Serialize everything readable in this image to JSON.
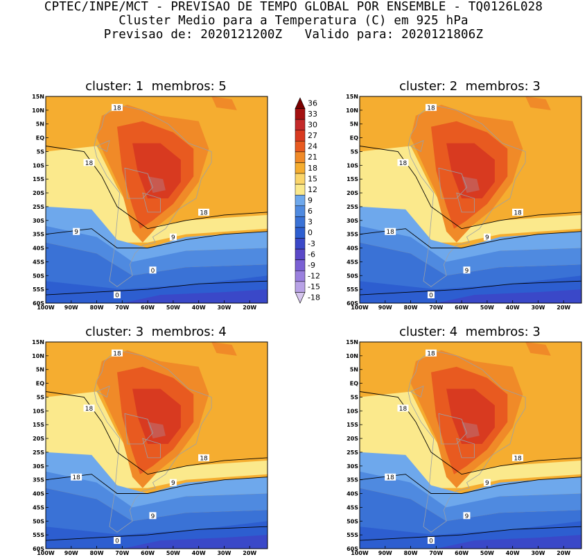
{
  "header": {
    "line1": "CPTEC/INPE/MCT - PREVISAO DE TEMPO GLOBAL POR ENSEMBLE - TQ0126L028",
    "line2": "Cluster Medio para a Temperatura (C) em 925 hPa",
    "line3": "Previsao de: 2020121200Z   Valido para: 2020121806Z"
  },
  "panels": [
    {
      "title": "cluster: 1  membros: 5",
      "contour_labels": [
        "18",
        "18",
        "18",
        "9",
        "9",
        "0",
        "0"
      ]
    },
    {
      "title": "cluster: 2  membros: 3",
      "contour_labels": [
        "18",
        "18",
        "18",
        "18",
        "9",
        "9",
        "0"
      ]
    },
    {
      "title": "cluster: 3  membros: 4",
      "contour_labels": [
        "18",
        "18",
        "18",
        "18",
        "9",
        "9",
        "0"
      ]
    },
    {
      "title": "cluster: 4  membros: 3",
      "contour_labels": [
        "18",
        "18",
        "18",
        "18",
        "9",
        "9",
        "0"
      ]
    }
  ],
  "axes": {
    "lat_labels": [
      "15N",
      "10N",
      "5N",
      "EQ",
      "5S",
      "10S",
      "15S",
      "20S",
      "25S",
      "30S",
      "35S",
      "40S",
      "45S",
      "50S",
      "55S",
      "60S"
    ],
    "lon_labels": [
      "100W",
      "90W",
      "80W",
      "70W",
      "60W",
      "50W",
      "40W",
      "30W",
      "20W"
    ]
  },
  "colorbar": {
    "labels": [
      "36",
      "33",
      "30",
      "27",
      "24",
      "21",
      "18",
      "15",
      "12",
      "9",
      "6",
      "3",
      "0",
      "-3",
      "-6",
      "-9",
      "-12",
      "-15",
      "-18"
    ],
    "colors": [
      "#7a0000",
      "#a31010",
      "#c42a2a",
      "#d83a20",
      "#e85a20",
      "#f08a28",
      "#f5ad30",
      "#fbd56a",
      "#fbe98c",
      "#6ea8ec",
      "#4f8ae0",
      "#3a72d6",
      "#2d5ed0",
      "#3a48c8",
      "#5a48c8",
      "#7a60d4",
      "#9a80de",
      "#b8a2e6",
      "#d6c6ee"
    ]
  }
}
